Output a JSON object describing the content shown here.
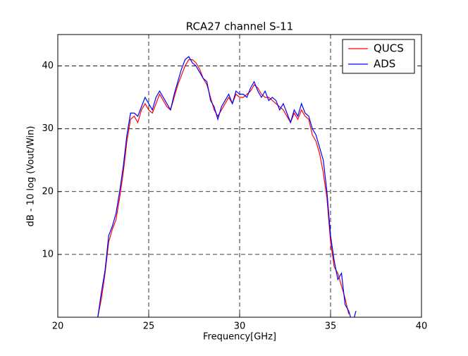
{
  "chart_data": {
    "type": "line",
    "title": "RCA27 channel S-11",
    "x_label": "Frequency[GHz]",
    "y_label": "dB - 10 log (Vout/Win)",
    "x": [
      22.2,
      22.4,
      22.6,
      22.8,
      23.0,
      23.2,
      23.4,
      23.6,
      23.8,
      24.0,
      24.2,
      24.4,
      24.6,
      24.8,
      25.0,
      25.2,
      25.4,
      25.6,
      25.8,
      26.0,
      26.2,
      26.4,
      26.6,
      26.8,
      27.0,
      27.2,
      27.4,
      27.6,
      27.8,
      28.0,
      28.2,
      28.4,
      28.6,
      28.8,
      29.0,
      29.2,
      29.4,
      29.6,
      29.8,
      30.0,
      30.2,
      30.4,
      30.6,
      30.8,
      31.0,
      31.2,
      31.4,
      31.6,
      31.8,
      32.0,
      32.2,
      32.4,
      32.6,
      32.8,
      33.0,
      33.2,
      33.4,
      33.6,
      33.8,
      34.0,
      34.2,
      34.4,
      34.6,
      34.8,
      35.0,
      35.2,
      35.4,
      35.6,
      35.8,
      36.0,
      36.2,
      36.4
    ],
    "series": [
      {
        "name": "QUCS",
        "color": "#ff0000",
        "values": [
          0,
          3,
          7,
          12,
          14,
          15.5,
          19,
          23,
          28,
          31.5,
          32,
          31,
          33,
          34,
          33,
          32.5,
          34,
          35.5,
          34.5,
          33.5,
          33,
          35,
          37,
          38.5,
          40,
          41,
          41,
          40.5,
          39.5,
          38,
          37,
          35,
          33,
          32,
          33,
          34,
          35,
          34,
          35.5,
          35,
          35,
          35.5,
          36,
          37,
          36.5,
          35.5,
          35,
          35,
          34.5,
          34,
          33.5,
          33,
          32,
          31,
          32.5,
          31.5,
          33,
          32,
          31.5,
          29,
          28,
          26,
          23,
          19,
          12,
          8,
          7,
          5,
          3,
          0.5,
          null,
          null
        ]
      },
      {
        "name": "ADS",
        "color": "#0000ff",
        "values": [
          0,
          4,
          7.5,
          13,
          14.5,
          16.5,
          20,
          24,
          29,
          32.5,
          32.5,
          32,
          33.5,
          35,
          34,
          33,
          35,
          36,
          35,
          34,
          33,
          35.5,
          37.5,
          39.5,
          41,
          41.5,
          40.5,
          40,
          39,
          38,
          37.5,
          34.5,
          33.5,
          31.5,
          33.5,
          34.5,
          35.5,
          34,
          36,
          35.5,
          35.5,
          35,
          36.5,
          37.5,
          36,
          35,
          36,
          34.5,
          35,
          34.5,
          33,
          34,
          32.5,
          31,
          33,
          32,
          34,
          32.5,
          32,
          30,
          29,
          27,
          25,
          20,
          13,
          9,
          6,
          7,
          2,
          1,
          -1,
          1
        ]
      }
    ],
    "xlim": [
      20,
      40
    ],
    "ylim": [
      0,
      45
    ],
    "xticks": [
      20,
      25,
      30,
      35,
      40
    ],
    "yticks": [
      10,
      20,
      30,
      40
    ],
    "grid": true,
    "legend": "upper right"
  }
}
